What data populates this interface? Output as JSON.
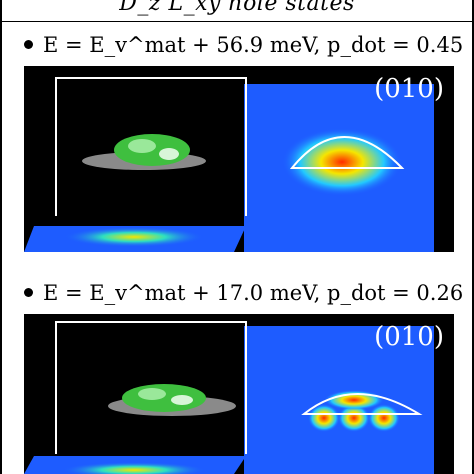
{
  "header": {
    "title": "D_z L_xy hole states"
  },
  "figures": [
    {
      "caption": "E = E_v^mat + 56.9 meV, p_dot = 0.45",
      "label": "(010)"
    },
    {
      "caption": "E = E_v^mat + 17.0 meV, p_dot = 0.26",
      "label": "(010)"
    }
  ],
  "colors": {
    "background": "#000000",
    "plane": "#1e5cff",
    "hot": "#ff2a00",
    "mid": "#f5e600",
    "isosurface": "#3fbf3f"
  }
}
